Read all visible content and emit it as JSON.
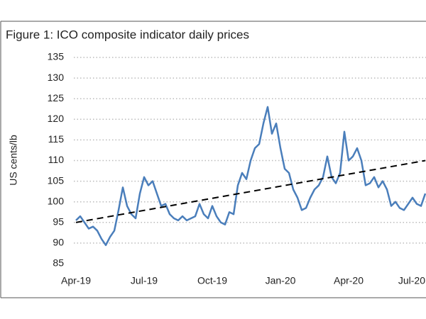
{
  "chart_data": {
    "type": "line",
    "title": "Figure 1: ICO composite indicator daily prices",
    "y_label": "US cents/lb",
    "categories": [
      "Apr-19",
      null,
      null,
      null,
      null,
      null,
      null,
      null,
      null,
      null,
      null,
      null,
      null,
      null,
      null,
      null,
      "Jul-19",
      null,
      null,
      null,
      null,
      null,
      null,
      null,
      null,
      null,
      null,
      null,
      null,
      null,
      null,
      null,
      "Oct-19",
      null,
      null,
      null,
      null,
      null,
      null,
      null,
      null,
      null,
      null,
      null,
      null,
      null,
      null,
      null,
      "Jan-20",
      null,
      null,
      null,
      null,
      null,
      null,
      null,
      null,
      null,
      null,
      null,
      null,
      null,
      null,
      null,
      "Apr-20",
      null,
      null,
      null,
      null,
      null,
      null,
      null,
      null,
      null,
      null,
      null,
      null,
      null,
      null,
      null,
      "Jul-20",
      null,
      null
    ],
    "values": [
      95.5,
      96.5,
      95,
      93.5,
      94,
      93,
      91,
      89.5,
      91.5,
      93,
      98,
      103.5,
      99,
      97,
      96,
      102,
      106,
      104,
      105,
      102,
      99,
      99.5,
      97,
      96,
      95.5,
      96.5,
      95.5,
      96,
      96.5,
      99.5,
      97,
      96,
      99,
      96.5,
      95,
      94.5,
      97.5,
      97,
      104,
      107,
      105.5,
      110,
      113,
      114,
      119,
      123,
      116.5,
      119,
      113,
      108,
      107,
      103,
      101,
      98,
      98.5,
      101,
      103,
      104,
      106,
      111,
      106,
      104.5,
      107,
      117,
      110,
      111,
      113,
      110,
      104,
      104.5,
      106,
      103.5,
      105,
      103,
      99,
      100,
      98.5,
      98,
      99.5,
      101,
      99.5,
      99,
      102
    ],
    "color": "#4a7ebb",
    "trend_values": [
      95,
      110
    ],
    "trend_color": "#000000",
    "ylim": [
      85,
      135
    ],
    "yticks": [
      85,
      90,
      95,
      100,
      105,
      110,
      115,
      120,
      125,
      130,
      135
    ],
    "grid": true
  }
}
